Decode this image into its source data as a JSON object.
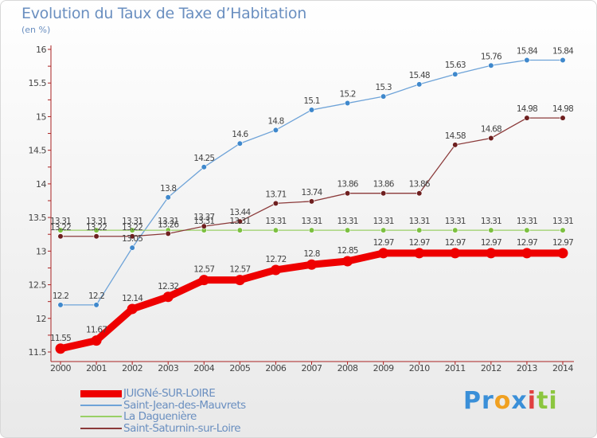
{
  "header": {
    "title": "Evolution du Taux de Taxe d’Habitation",
    "unit_label": "(en %)"
  },
  "brand": {
    "parts": [
      {
        "text": "Pr",
        "color": "#3a8fd8"
      },
      {
        "text": "o",
        "color": "#f0a020"
      },
      {
        "text": "x",
        "color": "#3a8fd8"
      },
      {
        "text": "i",
        "color": "#e04040"
      },
      {
        "text": "ti",
        "color": "#8cc63f"
      }
    ]
  },
  "chart_data": {
    "type": "line",
    "title": "Evolution du Taux de Taxe d’Habitation",
    "subtitle": "(en %)",
    "xlabel": "",
    "ylabel": "",
    "x": [
      2000,
      2001,
      2002,
      2003,
      2004,
      2005,
      2006,
      2007,
      2008,
      2009,
      2010,
      2011,
      2012,
      2013,
      2014
    ],
    "ylim": [
      11.5,
      16
    ],
    "yticks": [
      11.5,
      12,
      12.5,
      13,
      13.5,
      14,
      14.5,
      15,
      15.5,
      16
    ],
    "grid": false,
    "legend_position": "bottom-left",
    "series": [
      {
        "name": "JUIGNé-SUR-LOIRE",
        "color": "#ee0000",
        "marker_color": "#ee0000",
        "thick": true,
        "values": [
          11.55,
          11.67,
          12.14,
          12.32,
          12.57,
          12.57,
          12.72,
          12.8,
          12.85,
          12.97,
          12.97,
          12.97,
          12.97,
          12.97,
          12.97
        ],
        "labels": [
          "11.55",
          "11.67",
          "12.14",
          "12.32",
          "12.57",
          "12.57",
          "12.72",
          "12.8",
          "12.85",
          "12.97",
          "12.97",
          "12.97",
          "12.97",
          "12.97",
          "12.97"
        ]
      },
      {
        "name": "Saint-Jean-des-Mauvrets",
        "color": "#6ea3d8",
        "marker_color": "#3f88cc",
        "thick": false,
        "values": [
          12.2,
          12.2,
          13.05,
          13.8,
          14.25,
          14.6,
          14.8,
          15.1,
          15.2,
          15.3,
          15.48,
          15.63,
          15.76,
          15.84,
          15.84
        ],
        "labels": [
          "12.2",
          "12.2",
          "13.05",
          "13.8",
          "14.25",
          "14.6",
          "14.8",
          "15.1",
          "15.2",
          "15.3",
          "15.48",
          "15.63",
          "15.76",
          "15.84",
          "15.84"
        ]
      },
      {
        "name": "La Daguenière",
        "color": "#99d066",
        "marker_color": "#7cc040",
        "thick": false,
        "values": [
          13.31,
          13.31,
          13.31,
          13.31,
          13.31,
          13.31,
          13.31,
          13.31,
          13.31,
          13.31,
          13.31,
          13.31,
          13.31,
          13.31,
          13.31
        ],
        "labels": [
          "13.31",
          "13.31",
          "13.31",
          "13.31",
          "13.31",
          "13.31",
          "13.31",
          "13.31",
          "13.31",
          "13.31",
          "13.31",
          "13.31",
          "13.31",
          "13.31",
          "13.31"
        ]
      },
      {
        "name": "Saint-Saturnin-sur-Loire",
        "color": "#8b3a3a",
        "marker_color": "#6e1f1f",
        "thick": false,
        "values": [
          13.22,
          13.22,
          13.22,
          13.26,
          13.37,
          13.44,
          13.71,
          13.74,
          13.86,
          13.86,
          13.86,
          14.58,
          14.68,
          14.98,
          14.98
        ],
        "labels": [
          "13.22",
          "13.22",
          "13.22",
          "13.26",
          "13.37",
          "13.44",
          "13.71",
          "13.74",
          "13.86",
          "13.86",
          "13.86",
          "14.58",
          "14.68",
          "14.98",
          "14.98"
        ]
      }
    ]
  }
}
